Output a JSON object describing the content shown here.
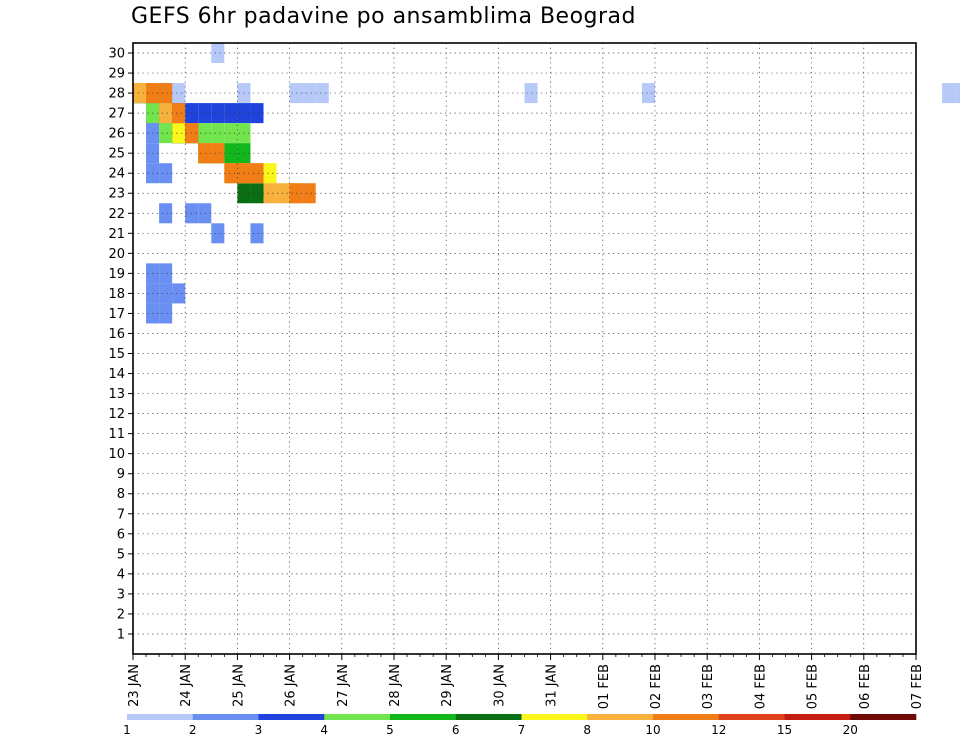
{
  "chart_data": {
    "type": "heatmap",
    "title": "GEFS 6hr padavine po ansamblima Beograd",
    "xlabel": "",
    "ylabel": "",
    "x_tick_labels": [
      "23 JAN",
      "24 JAN",
      "25 JAN",
      "26 JAN",
      "27 JAN",
      "28 JAN",
      "29 JAN",
      "30 JAN",
      "31 JAN",
      "01 FEB",
      "02 FEB",
      "03 FEB",
      "04 FEB",
      "05 FEB",
      "06 FEB",
      "07 FEB"
    ],
    "y_tick_labels": [
      "1",
      "2",
      "3",
      "4",
      "5",
      "6",
      "7",
      "8",
      "9",
      "10",
      "11",
      "12",
      "13",
      "14",
      "15",
      "16",
      "17",
      "18",
      "19",
      "20",
      "21",
      "22",
      "23",
      "24",
      "25",
      "26",
      "27",
      "28",
      "29",
      "30"
    ],
    "x_steps_per_day": 4,
    "ylim": [
      0,
      30
    ],
    "grid": true,
    "colorbar": {
      "position": "bottom",
      "labels": [
        "1",
        "2",
        "3",
        "4",
        "5",
        "6",
        "7",
        "8",
        "10",
        "12",
        "15",
        "20"
      ],
      "colors": [
        "#b6c9f8",
        "#6a8ff2",
        "#1f43dc",
        "#72e44e",
        "#12b81b",
        "#0a6e12",
        "#faf51a",
        "#f8b13c",
        "#f07d16",
        "#e0421b",
        "#c31d12",
        "#6e0a08"
      ]
    },
    "cells": [
      [
        1,
        2,
        28
      ],
      [
        1,
        3,
        28
      ],
      [
        1,
        6,
        30
      ],
      [
        1,
        8,
        28
      ],
      [
        1,
        12,
        28
      ],
      [
        1,
        13,
        28
      ],
      [
        1,
        14,
        28
      ],
      [
        1,
        30,
        28
      ],
      [
        1,
        39,
        28
      ],
      [
        1,
        62,
        28
      ],
      [
        1,
        63,
        28
      ],
      [
        2,
        0,
        28
      ],
      [
        2,
        1,
        27
      ],
      [
        2,
        2,
        28
      ],
      [
        2,
        1,
        26
      ],
      [
        2,
        1,
        25
      ],
      [
        2,
        1,
        24
      ],
      [
        2,
        2,
        24
      ],
      [
        2,
        2,
        22
      ],
      [
        2,
        4,
        22
      ],
      [
        2,
        5,
        22
      ],
      [
        2,
        6,
        21
      ],
      [
        2,
        9,
        21
      ],
      [
        2,
        1,
        19
      ],
      [
        2,
        2,
        19
      ],
      [
        2,
        1,
        18
      ],
      [
        2,
        2,
        18
      ],
      [
        2,
        3,
        18
      ],
      [
        2,
        1,
        17
      ],
      [
        2,
        2,
        17
      ],
      [
        3,
        0,
        28
      ],
      [
        3,
        1,
        27
      ],
      [
        3,
        2,
        27
      ],
      [
        3,
        3,
        27
      ],
      [
        3,
        4,
        27
      ],
      [
        3,
        5,
        27
      ],
      [
        3,
        6,
        27
      ],
      [
        3,
        7,
        27
      ],
      [
        3,
        8,
        27
      ],
      [
        3,
        9,
        27
      ],
      [
        4,
        0,
        28
      ],
      [
        4,
        1,
        28
      ],
      [
        4,
        1,
        27
      ],
      [
        4,
        2,
        26
      ],
      [
        4,
        3,
        26
      ],
      [
        4,
        4,
        26
      ],
      [
        4,
        5,
        26
      ],
      [
        4,
        6,
        26
      ],
      [
        4,
        7,
        26
      ],
      [
        4,
        8,
        26
      ],
      [
        5,
        0,
        28
      ],
      [
        5,
        2,
        27
      ],
      [
        5,
        3,
        26
      ],
      [
        5,
        4,
        26
      ],
      [
        5,
        5,
        25
      ],
      [
        5,
        6,
        25
      ],
      [
        5,
        7,
        25
      ],
      [
        5,
        8,
        25
      ],
      [
        6,
        0,
        28
      ],
      [
        6,
        1,
        28
      ],
      [
        6,
        3,
        26
      ],
      [
        6,
        4,
        26
      ],
      [
        6,
        5,
        25
      ],
      [
        6,
        6,
        25
      ],
      [
        6,
        8,
        23
      ],
      [
        6,
        9,
        23
      ],
      [
        7,
        0,
        28
      ],
      [
        7,
        1,
        28
      ],
      [
        7,
        3,
        26
      ],
      [
        7,
        5,
        25
      ],
      [
        7,
        6,
        25
      ],
      [
        7,
        8,
        24
      ],
      [
        7,
        9,
        24
      ],
      [
        7,
        10,
        24
      ],
      [
        8,
        0,
        28
      ],
      [
        8,
        2,
        27
      ],
      [
        8,
        4,
        26
      ],
      [
        8,
        5,
        25
      ],
      [
        8,
        6,
        25
      ],
      [
        8,
        7,
        24
      ],
      [
        8,
        8,
        24
      ],
      [
        8,
        10,
        23
      ],
      [
        8,
        11,
        23
      ],
      [
        8,
        12,
        23
      ],
      [
        9,
        1,
        28
      ],
      [
        9,
        2,
        28
      ],
      [
        9,
        3,
        27
      ],
      [
        9,
        4,
        26
      ],
      [
        9,
        5,
        25
      ],
      [
        9,
        6,
        25
      ],
      [
        9,
        7,
        24
      ],
      [
        9,
        8,
        24
      ],
      [
        9,
        9,
        24
      ],
      [
        9,
        12,
        23
      ],
      [
        9,
        13,
        23
      ]
    ]
  }
}
